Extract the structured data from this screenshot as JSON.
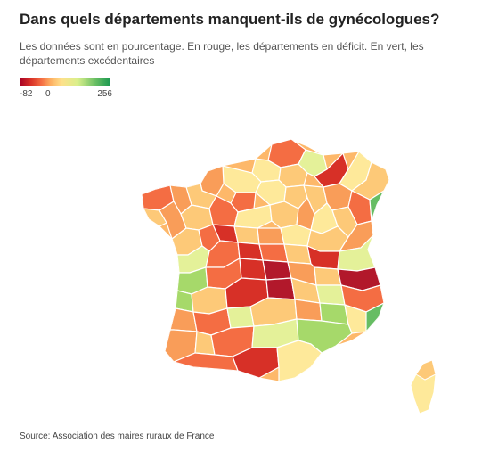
{
  "title": "Dans quels départements manquent-ils de gynécologues?",
  "subtitle": "Les données sont en pourcentage. En rouge, les départements en déficit. En vert, les départements excédentaires",
  "legend": {
    "min_label": "-82",
    "zero_label": "0",
    "max_label": "256",
    "min_value": -82,
    "zero_value": 0,
    "max_value": 256,
    "colors": [
      "#a50026",
      "#d73027",
      "#f46d43",
      "#fdae61",
      "#fee08b",
      "#d9ef8b",
      "#66bd63",
      "#1a9850"
    ]
  },
  "source": "Source: Association des maires ruraux de France",
  "map": {
    "name": "France departments",
    "region_colors": {
      "deep_deficit": "#b2182b",
      "strong_deficit": "#d73027",
      "deficit": "#f46d43",
      "moderate_deficit": "#f99d59",
      "slight_deficit": "#fdc978",
      "neutral": "#fee99a",
      "slight_surplus": "#e4f199",
      "surplus": "#a6d96a",
      "strong_surplus": "#66bd63"
    }
  }
}
